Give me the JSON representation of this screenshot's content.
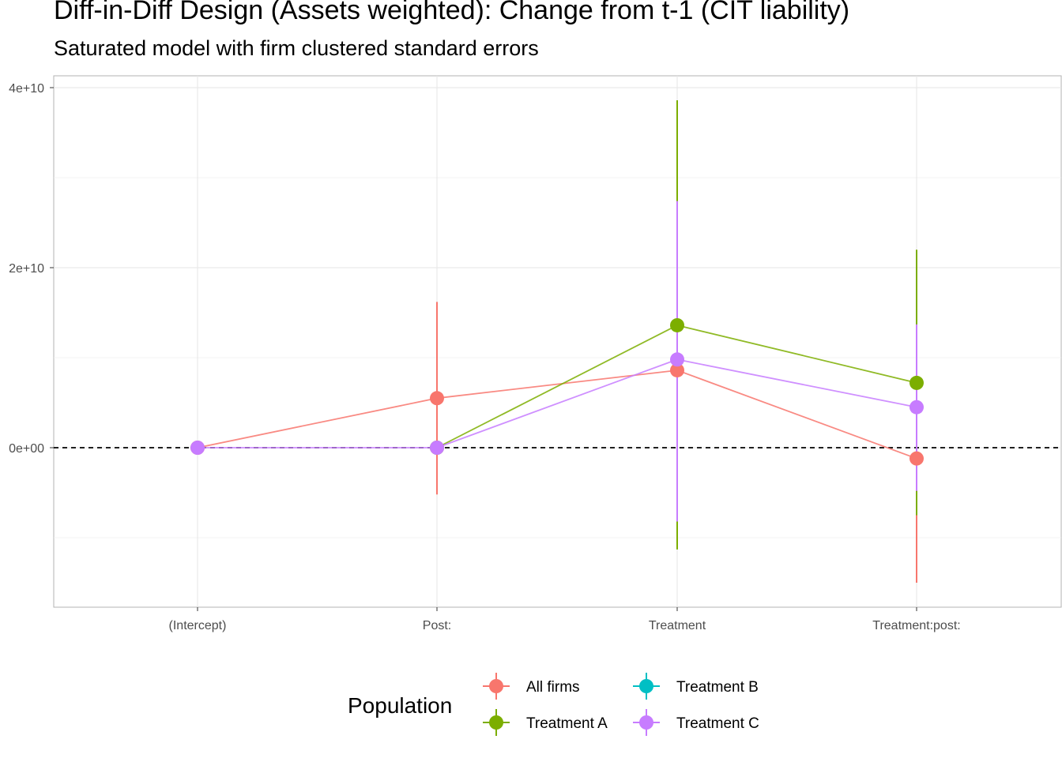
{
  "chart_data": {
    "type": "line",
    "title": "Diff-in-Diff Design (Assets weighted): Change from t-1 (CIT liability)",
    "subtitle": "Saturated model with firm clustered standard errors",
    "xlabel": "",
    "ylabel": "",
    "categories": [
      "(Intercept)",
      "Post:",
      "Treatment",
      "Treatment:post:"
    ],
    "y_ticks": [
      0,
      20000000000,
      40000000000
    ],
    "y_tick_labels": [
      "0e+00",
      "2e+10",
      "4e+10"
    ],
    "ylim": [
      -17500000000,
      40000000000
    ],
    "reference_line": 0,
    "grid": true,
    "legend": {
      "title": "Population",
      "position": "bottom"
    },
    "series": [
      {
        "name": "All firms",
        "color": "#F8766D",
        "values": [
          0,
          5500000000,
          8600000000,
          -1200000000
        ],
        "lower": [
          0,
          -5200000000,
          null,
          -15000000000
        ],
        "upper": [
          0,
          16200000000,
          null,
          null
        ]
      },
      {
        "name": "Treatment A",
        "color": "#7CAE00",
        "values": [
          null,
          0,
          13600000000,
          7200000000
        ],
        "lower": [
          null,
          0,
          -11300000000,
          -7500000000
        ],
        "upper": [
          null,
          0,
          38600000000,
          22000000000
        ]
      },
      {
        "name": "Treatment B",
        "color": "#00BFC4",
        "values": [
          null,
          null,
          null,
          null
        ],
        "lower": [
          null,
          null,
          null,
          null
        ],
        "upper": [
          null,
          null,
          null,
          null
        ]
      },
      {
        "name": "Treatment C",
        "color": "#C77CFF",
        "values": [
          0,
          0,
          9800000000,
          4500000000
        ],
        "lower": [
          0,
          0,
          -8200000000,
          -4800000000
        ],
        "upper": [
          0,
          0,
          27400000000,
          13700000000
        ]
      }
    ]
  }
}
